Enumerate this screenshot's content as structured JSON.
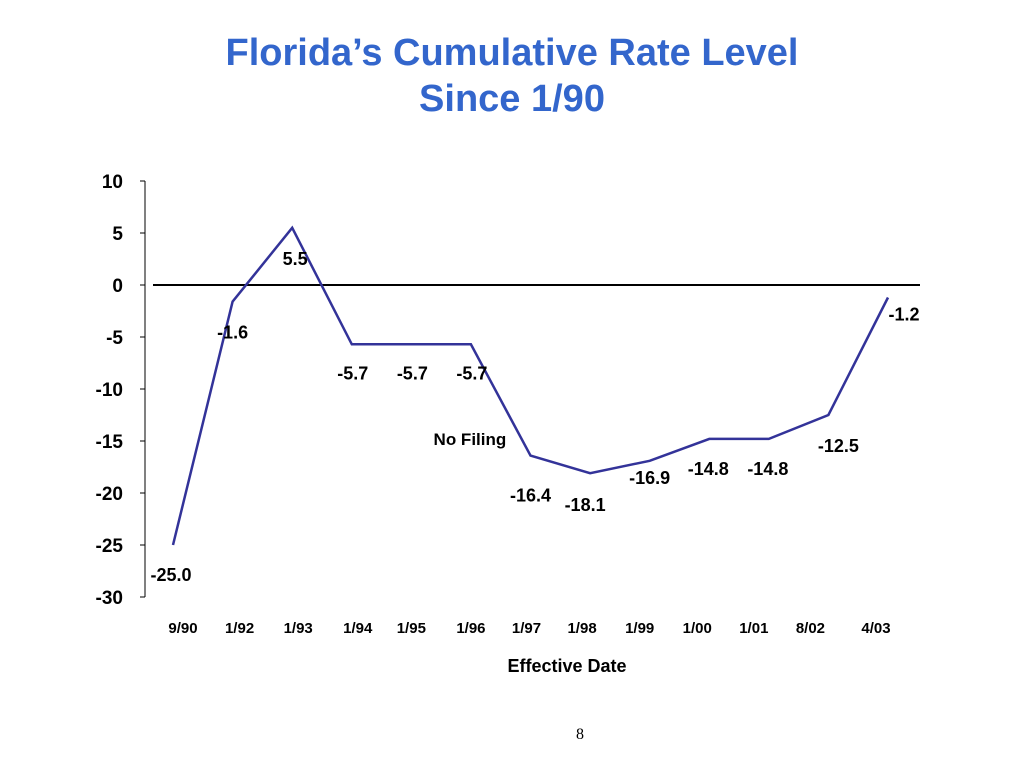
{
  "slide": {
    "title_line1": "Florida’s Cumulative Rate Level",
    "title_line2": "Since 1/90",
    "page_number": "8"
  },
  "colors": {
    "title": "#3366cc",
    "series_line": "#333399",
    "zero_line": "#000000",
    "text": "#000000"
  },
  "chart_data": {
    "type": "line",
    "title": "Florida’s Cumulative Rate Level Since 1/90",
    "xlabel": "Effective Date",
    "ylabel": "",
    "ylim": [
      -30,
      10
    ],
    "yticks": [
      10,
      5,
      0,
      -5,
      -10,
      -15,
      -20,
      -25,
      -30
    ],
    "grid": false,
    "legend": "none",
    "categories": [
      "9/90",
      "1/92",
      "1/93",
      "1/94",
      "1/95",
      "1/96",
      "1/97",
      "1/98",
      "1/99",
      "1/00",
      "1/01",
      "8/02",
      "4/03"
    ],
    "series": [
      {
        "values": [
          -25.0,
          -1.6,
          5.5,
          -5.7,
          -5.7,
          -5.7,
          -16.4,
          -18.1,
          -16.9,
          -14.8,
          -14.8,
          -12.5,
          -1.2
        ]
      }
    ],
    "data_labels": [
      "-25.0",
      "-1.6",
      "5.5",
      "-5.7",
      "-5.7",
      "-5.7",
      "-16.4",
      "-18.1",
      "-16.9",
      "-14.8",
      "-14.8",
      "-12.5",
      "-1.2"
    ],
    "annotations": [
      {
        "text": "No Filing",
        "near_category": "1/96"
      }
    ]
  }
}
